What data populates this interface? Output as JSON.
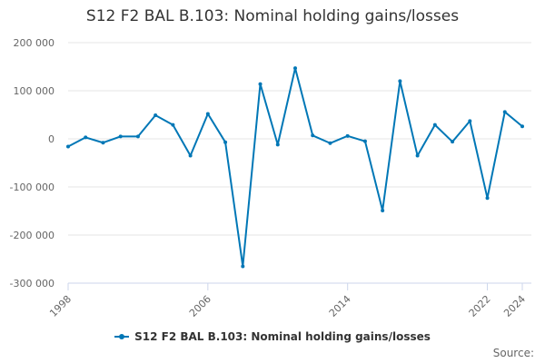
{
  "chart_data": {
    "type": "line",
    "title": "S12 F2 BAL B.103: Nominal holding gains/losses",
    "x": [
      1998,
      1999,
      2000,
      2001,
      2002,
      2003,
      2004,
      2005,
      2006,
      2007,
      2008,
      2009,
      2010,
      2011,
      2012,
      2013,
      2014,
      2015,
      2016,
      2017,
      2018,
      2019,
      2020,
      2021,
      2022,
      2023,
      2024
    ],
    "x_tick_labels": [
      "1998",
      "2006",
      "2014",
      "2022",
      "2024"
    ],
    "x_ticks": [
      1998,
      2006,
      2014,
      2022,
      2024
    ],
    "xlim": [
      1998,
      2024
    ],
    "ylim": [
      -300000,
      200000
    ],
    "y_ticks": [
      200000,
      100000,
      0,
      -100000,
      -200000,
      -300000
    ],
    "y_tick_labels": [
      "200 000",
      "100 000",
      "0",
      "-100 000",
      "-200 000",
      "-300 000"
    ],
    "grid": true,
    "legend_position": "bottom",
    "series": [
      {
        "name": "S12 F2 BAL B.103: Nominal holding gains/losses",
        "color": "#0077b6",
        "values": [
          -16000,
          3000,
          -8000,
          5000,
          5000,
          49000,
          29000,
          -35000,
          52000,
          -7000,
          -265000,
          114000,
          -12000,
          147000,
          7000,
          -9000,
          6000,
          -5000,
          -149000,
          120000,
          -35000,
          29000,
          -6000,
          37000,
          -123000,
          56000,
          26000
        ]
      }
    ]
  },
  "source_label": "Source:"
}
